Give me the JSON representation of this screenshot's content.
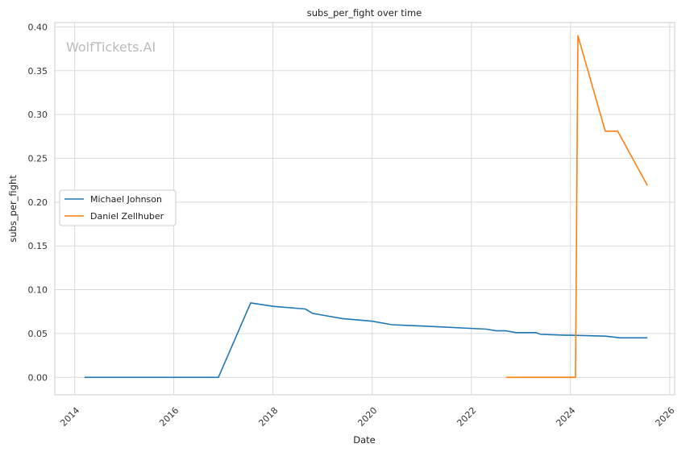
{
  "chart_data": {
    "type": "line",
    "title": "subs_per_fight over time",
    "xlabel": "Date",
    "ylabel": "subs_per_fight",
    "watermark": "WolfTickets.AI",
    "grid": true,
    "legend_position": "center-left",
    "xlim": [
      2013.6,
      2026.1
    ],
    "ylim": [
      -0.02,
      0.405
    ],
    "x_ticks": [
      2014,
      2016,
      2018,
      2020,
      2022,
      2024,
      2026
    ],
    "y_ticks": [
      0.0,
      0.05,
      0.1,
      0.15,
      0.2,
      0.25,
      0.3,
      0.35,
      0.4
    ],
    "x_tick_labels": [
      "2014",
      "2016",
      "2018",
      "2020",
      "2022",
      "2024",
      "2026"
    ],
    "y_tick_labels": [
      "0.00",
      "0.05",
      "0.10",
      "0.15",
      "0.20",
      "0.25",
      "0.30",
      "0.35",
      "0.40"
    ],
    "series": [
      {
        "name": "Michael Johnson",
        "color": "#1f77b4",
        "points": [
          [
            2014.2,
            0.0
          ],
          [
            2016.9,
            0.0
          ],
          [
            2017.55,
            0.085
          ],
          [
            2018.0,
            0.081
          ],
          [
            2018.65,
            0.078
          ],
          [
            2018.8,
            0.073
          ],
          [
            2019.0,
            0.071
          ],
          [
            2019.4,
            0.067
          ],
          [
            2019.8,
            0.065
          ],
          [
            2020.0,
            0.064
          ],
          [
            2020.4,
            0.06
          ],
          [
            2021.2,
            0.058
          ],
          [
            2022.3,
            0.055
          ],
          [
            2022.5,
            0.053
          ],
          [
            2022.7,
            0.053
          ],
          [
            2022.9,
            0.051
          ],
          [
            2023.3,
            0.051
          ],
          [
            2023.4,
            0.049
          ],
          [
            2023.9,
            0.048
          ],
          [
            2024.0,
            0.048
          ],
          [
            2024.7,
            0.047
          ],
          [
            2025.0,
            0.045
          ],
          [
            2025.55,
            0.045
          ]
        ]
      },
      {
        "name": "Daniel Zellhuber",
        "color": "#ff7f0e",
        "points": [
          [
            2022.7,
            0.0
          ],
          [
            2024.1,
            0.0
          ],
          [
            2024.15,
            0.39
          ],
          [
            2024.7,
            0.281
          ],
          [
            2024.95,
            0.281
          ],
          [
            2025.55,
            0.219
          ]
        ]
      }
    ]
  }
}
